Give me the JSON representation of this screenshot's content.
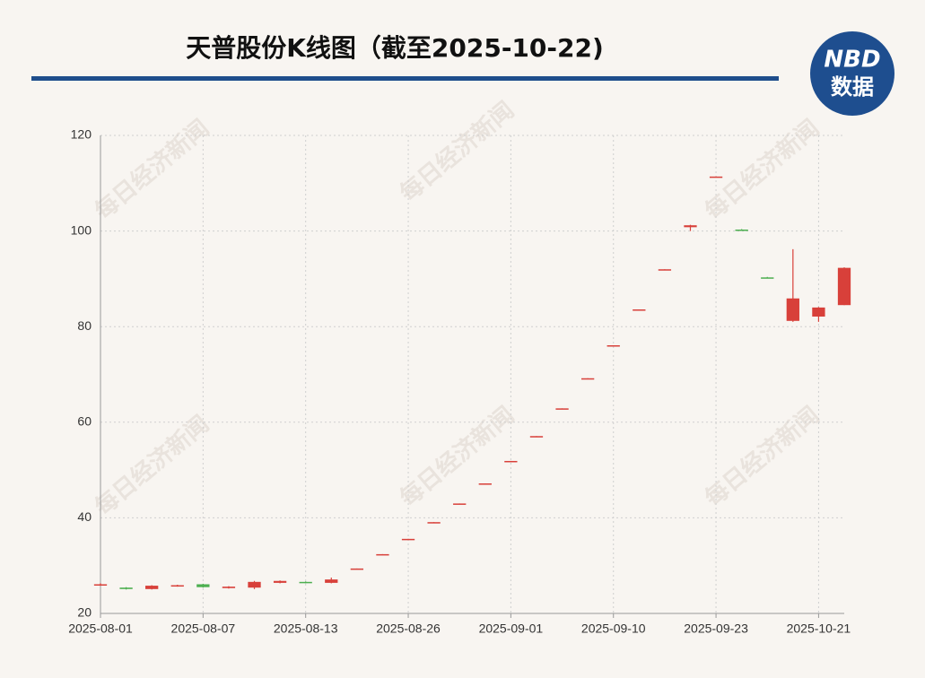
{
  "chart_data": {
    "type": "candlestick",
    "title": "天普股份K线图（截至2025-10-22)",
    "logo_top": "NBD",
    "logo_bottom": "数据",
    "watermark": "每日经济新闻",
    "categories": [
      "2025-08-01",
      null,
      null,
      null,
      "2025-08-07",
      null,
      null,
      null,
      "2025-08-13",
      null,
      null,
      null,
      "2025-08-26",
      null,
      null,
      null,
      "2025-09-01",
      null,
      null,
      null,
      "2025-09-10",
      null,
      null,
      null,
      "2025-09-23",
      null,
      null,
      null,
      "2025-10-21",
      null
    ],
    "open": [
      25.9,
      25.4,
      25.1,
      25.7,
      26.1,
      25.3,
      25.4,
      26.4,
      26.6,
      26.4,
      29.3,
      32.3,
      35.5,
      39.0,
      42.9,
      47.1,
      51.8,
      57.0,
      62.8,
      69.1,
      76.0,
      83.5,
      91.9,
      100.8,
      111.3,
      100.3,
      90.3,
      81.2,
      82.1,
      84.5
    ],
    "high": [
      26.3,
      25.5,
      25.9,
      26.0,
      26.2,
      25.7,
      26.8,
      26.9,
      26.7,
      27.5,
      29.4,
      32.4,
      35.6,
      39.1,
      43.0,
      47.2,
      51.9,
      57.1,
      62.9,
      69.2,
      76.1,
      83.6,
      92.0,
      101.3,
      111.4,
      100.4,
      90.4,
      96.2,
      84.1,
      92.4
    ],
    "low": [
      25.8,
      25.0,
      25.0,
      25.6,
      25.4,
      25.2,
      25.1,
      26.3,
      26.3,
      26.3,
      29.3,
      32.3,
      35.5,
      39.0,
      42.9,
      47.1,
      51.8,
      57.0,
      62.8,
      69.1,
      76.0,
      83.5,
      91.9,
      100.0,
      111.3,
      100.1,
      90.1,
      81.0,
      81.0,
      84.5
    ],
    "close": [
      26.1,
      25.1,
      25.8,
      25.9,
      25.5,
      25.6,
      26.6,
      26.8,
      26.4,
      27.1,
      29.4,
      32.4,
      35.6,
      39.1,
      43.0,
      47.2,
      51.9,
      57.1,
      62.9,
      69.2,
      76.1,
      83.6,
      92.0,
      101.2,
      111.4,
      100.2,
      90.2,
      85.9,
      84.0,
      92.3
    ],
    "up_color": "#d8403a",
    "down_color": "#4caf50",
    "ylim": [
      20,
      120
    ],
    "yticks": [
      20,
      40,
      60,
      80,
      100,
      120
    ],
    "grid": true
  }
}
